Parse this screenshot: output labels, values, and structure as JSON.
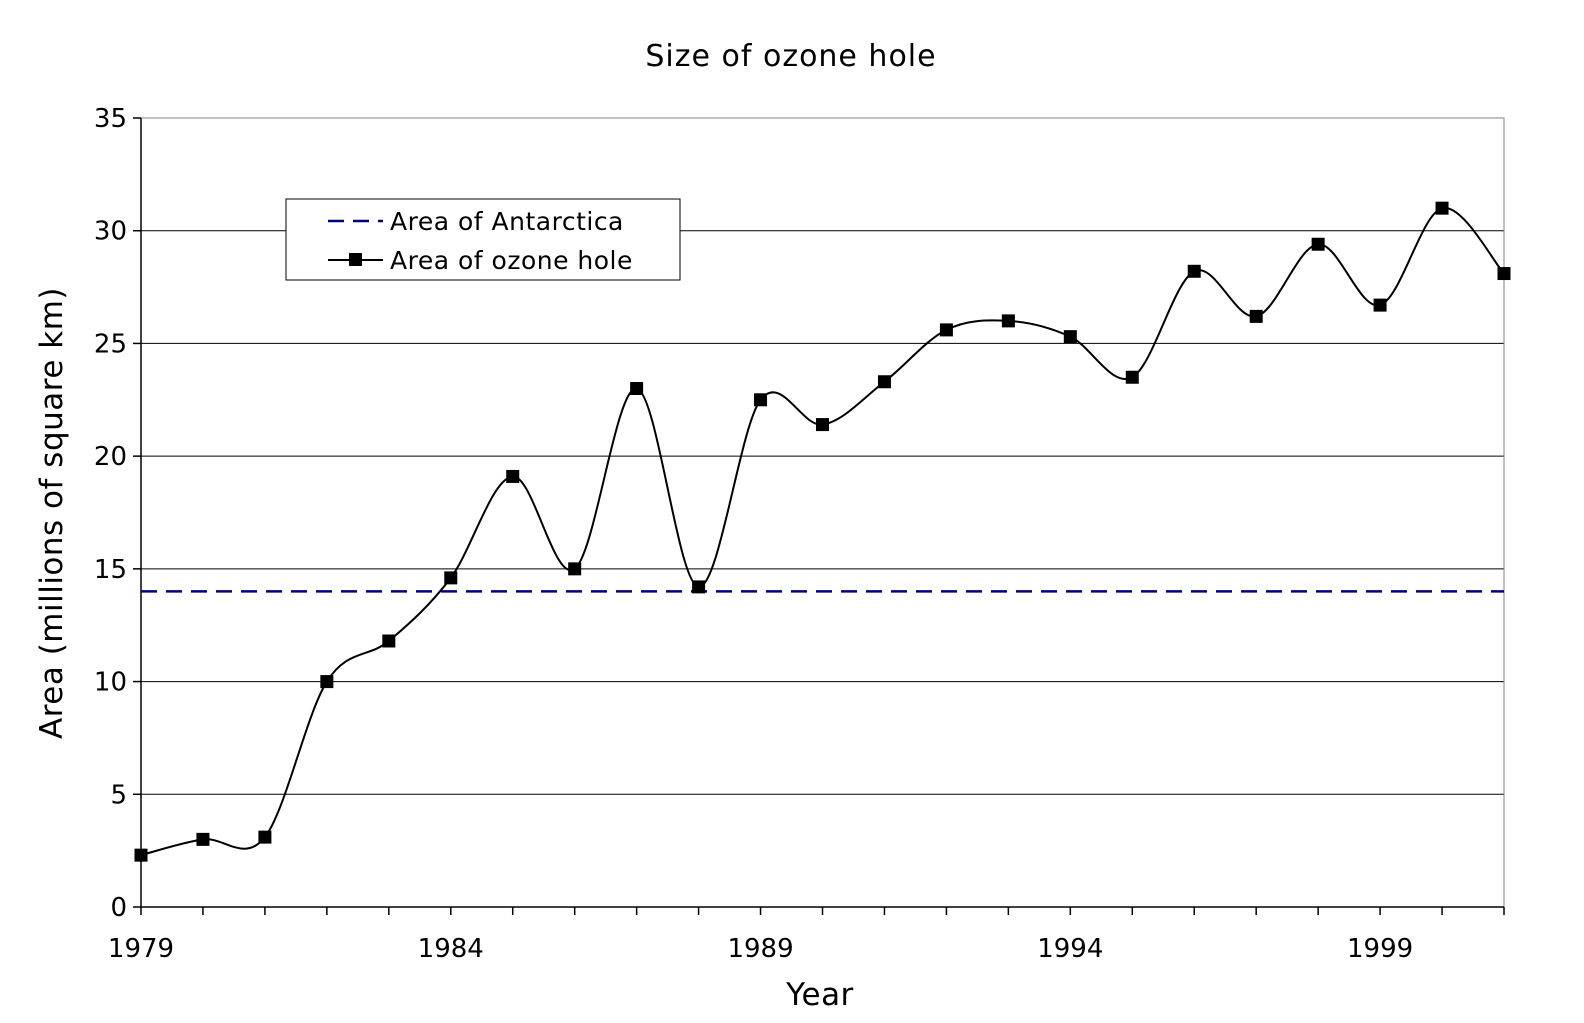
{
  "chart_data": {
    "type": "line",
    "title": "Size of ozone hole",
    "xlabel": "Year",
    "ylabel": "Area (millions of square km)",
    "xlim": [
      1979,
      2001
    ],
    "ylim": [
      0,
      35
    ],
    "x_ticks": [
      1979,
      1984,
      1989,
      1994,
      1999
    ],
    "x_tick_labels": [
      "1979",
      "1984",
      "1989",
      "1994",
      "1999"
    ],
    "y_ticks": [
      0,
      5,
      10,
      15,
      20,
      25,
      30,
      35
    ],
    "y_tick_labels": [
      "0",
      "5",
      "10",
      "15",
      "20",
      "25",
      "30",
      "35"
    ],
    "grid": "horizontal",
    "legend_position": "top-left",
    "series": [
      {
        "name": "Area of Antarctica",
        "style": "dashed",
        "color": "#000080",
        "x": [
          1979,
          2001
        ],
        "y": [
          14,
          14
        ]
      },
      {
        "name": "Area of ozone hole",
        "style": "smooth-line-square-markers",
        "color": "#000000",
        "x": [
          1979,
          1980,
          1981,
          1982,
          1983,
          1984,
          1985,
          1986,
          1987,
          1988,
          1989,
          1990,
          1991,
          1992,
          1993,
          1994,
          1995,
          1996,
          1997,
          1998,
          1999,
          2000,
          2001
        ],
        "y": [
          2.3,
          3.0,
          3.1,
          10.0,
          11.8,
          14.6,
          19.1,
          15.0,
          23.0,
          14.2,
          22.5,
          21.4,
          23.3,
          25.6,
          26.0,
          25.3,
          23.5,
          28.2,
          26.2,
          29.4,
          26.7,
          31.0,
          28.1
        ]
      }
    ]
  }
}
